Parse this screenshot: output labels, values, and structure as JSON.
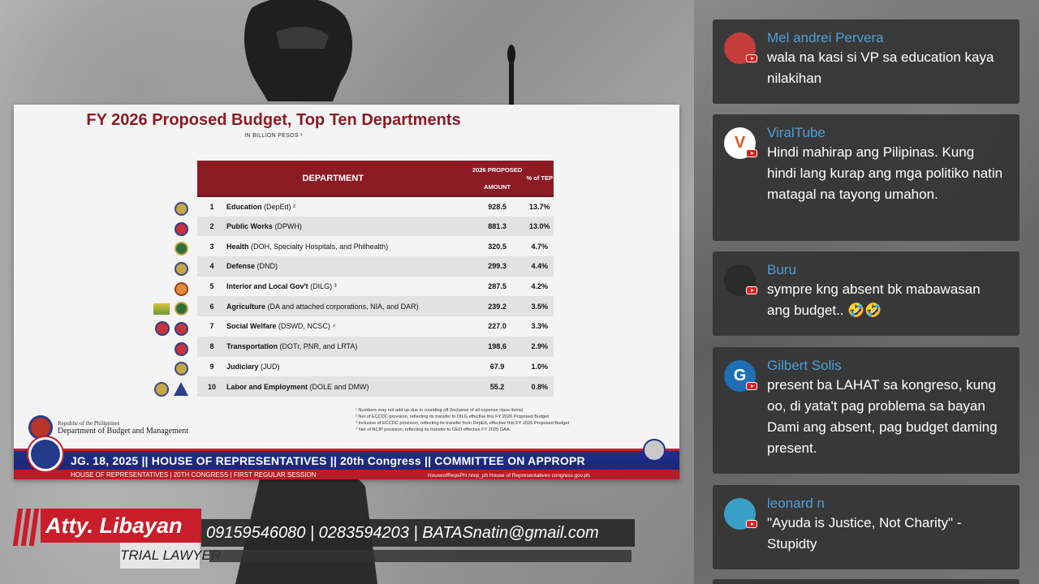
{
  "slide": {
    "title": "FY 2026 Proposed Budget, Top Ten Departments",
    "subtitle": "IN BILLION PESOS ¹",
    "headers": {
      "department": "DEPARTMENT",
      "amount_line1": "2026 PROPOSED",
      "amount_line2": "AMOUNT",
      "pct": "% of TEP"
    },
    "rows": [
      {
        "rank": "1",
        "name": "Education",
        "detail": "(DepEd) ²",
        "amount": "928.5",
        "pct": "13.7%"
      },
      {
        "rank": "2",
        "name": "Public Works",
        "detail": "(DPWH)",
        "amount": "881.3",
        "pct": "13.0%"
      },
      {
        "rank": "3",
        "name": "Health",
        "detail": "(DOH, Specialty Hospitals, and Philhealth)",
        "amount": "320.5",
        "pct": "4.7%"
      },
      {
        "rank": "4",
        "name": "Defense",
        "detail": "(DND)",
        "amount": "299.3",
        "pct": "4.4%"
      },
      {
        "rank": "5",
        "name": "Interior and Local Gov't",
        "detail": "(DILG) ³",
        "amount": "287.5",
        "pct": "4.2%"
      },
      {
        "rank": "6",
        "name": "Agriculture",
        "detail": "(DA and attached corporations, NIA, and DAR)",
        "amount": "239.2",
        "pct": "3.5%"
      },
      {
        "rank": "7",
        "name": "Social Welfare",
        "detail": "(DSWD, NCSC) ⁴",
        "amount": "227.0",
        "pct": "3.3%"
      },
      {
        "rank": "8",
        "name": "Transportation",
        "detail": "(DOTr, PNR, and LRTA)",
        "amount": "198.6",
        "pct": "2.9%"
      },
      {
        "rank": "9",
        "name": "Judiciary",
        "detail": "(JUD)",
        "amount": "67.9",
        "pct": "1.0%"
      },
      {
        "rank": "10",
        "name": "Labor and Employment",
        "detail": "(DOLE and DMW)",
        "amount": "55.2",
        "pct": "0.8%"
      }
    ],
    "footnotes": [
      "¹ Numbers may not add up due to rounding off (Inclusive of all expense class items)",
      "² Net of ECCDC provision, reflecting its transfer to DILG effective this FY 2026 Proposed Budget",
      "³ Inclusive of ECCDC provision, reflecting its transfer from DepEd, effective this FY 2026 Proposed Budget",
      "⁴ Net of NCIP provision, reflecting its transfer to OEO effective FY 2025 GAA."
    ],
    "dbm_small": "Republic of the Philippines",
    "dbm_name": "Department of Budget and Management"
  },
  "banner": {
    "main": "JG. 18, 2025   ||   HOUSE OF REPRESENTATIVES   ||   20th Congress   ||   COMMITTEE ON APPROPR",
    "sub": "HOUSE OF REPRESENTATIVES  |  20TH CONGRESS  |  FIRST REGULAR SESSION",
    "social": "HouseofRepsPH    hrep_ph    House of Representatives    congress.gov.ph"
  },
  "lower_third": {
    "name": "Atty. Libayan",
    "role": "TRIAL LAWYER",
    "contact": "09159546080 | 0283594203 | BATASnatin@gmail.com"
  },
  "chat": [
    {
      "author": "Mel andrei Pervera",
      "text": "wala na kasi si VP sa education kaya nilakihan",
      "avatar": "",
      "avatar_color": "#b23a3a"
    },
    {
      "author": "ViralTube",
      "text": "Hindi mahirap ang Pilipinas. Kung hindi lang kurap ang mga politiko natin matagal na tayong umahon.",
      "avatar": "V",
      "avatar_color": "#ffffff"
    },
    {
      "author": "Buru",
      "text": "sympre kng absent bk mabawasan ang budget.. 🤣🤣",
      "avatar": "",
      "avatar_color": "#222222"
    },
    {
      "author": "Gilbert Solis",
      "text": "present ba LAHAT sa kongreso, kung oo, di yata't pag problema sa bayan Dami ang absent, pag budget daming present.",
      "avatar": "G",
      "avatar_color": "#1f6fb5"
    },
    {
      "author": "leonard n",
      "text": "\"Ayuda is Justice, Not Charity\" - Stupidty",
      "avatar": "",
      "avatar_color": "#3aa0c9"
    }
  ]
}
